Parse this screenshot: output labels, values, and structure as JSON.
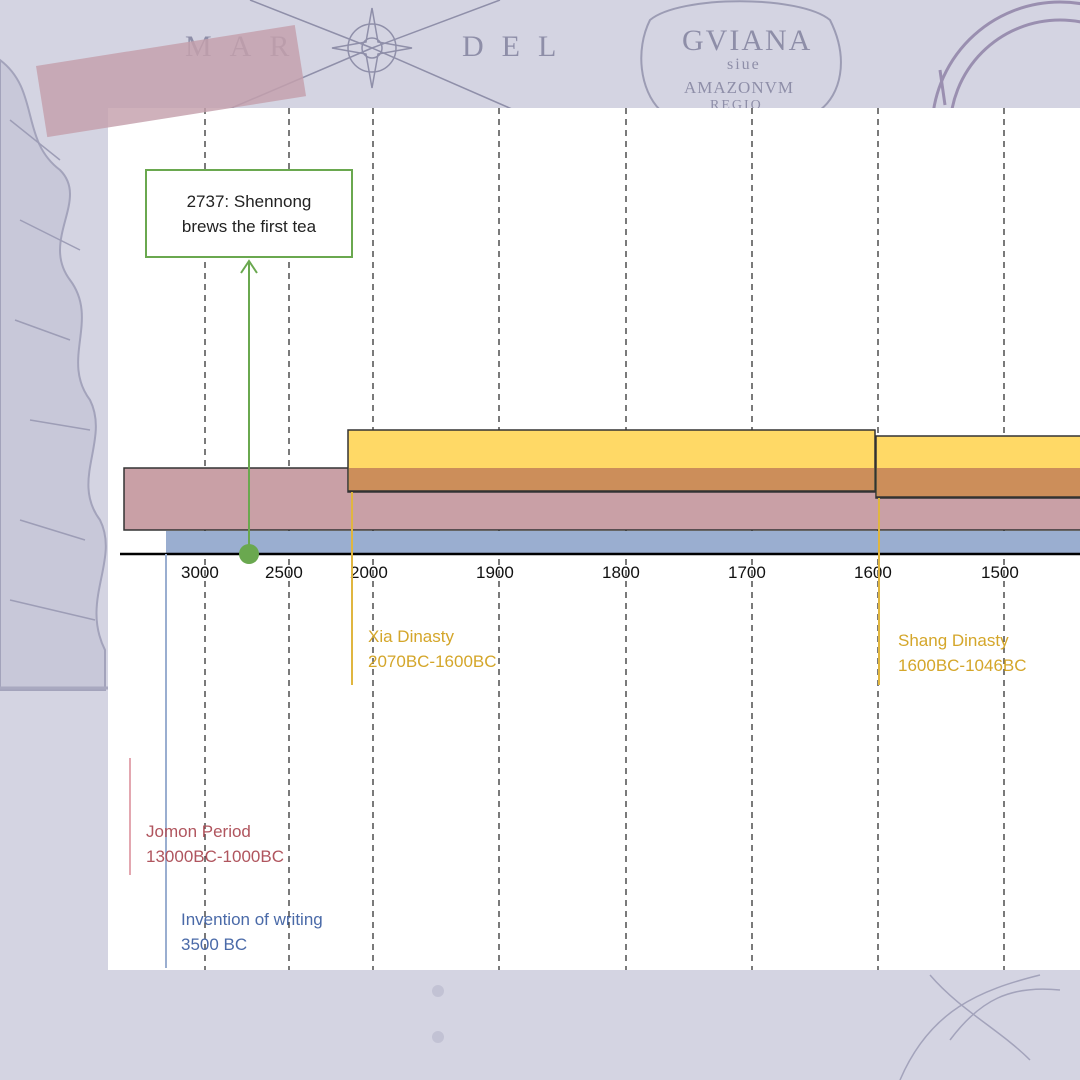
{
  "background": {
    "map_words": [
      "MAR",
      "DEL"
    ],
    "cartouche_title": "GVIANA",
    "cartouche_sub": "siue",
    "cartouche_line": "AMAZONVM",
    "cartouche_extra": "REGIO"
  },
  "colors": {
    "jomon": "#c9a0a6",
    "writing": "#9aaed0",
    "xia": "#ffd966",
    "shang": "#ffd966",
    "overlap": "#cc8e5a",
    "event": "#6aa84f",
    "gridline": "#333333"
  },
  "axis": {
    "ticks": [
      "3000",
      "2500",
      "2000",
      "1900",
      "1800",
      "1700",
      "1600",
      "1500"
    ]
  },
  "event": {
    "line1": "2737: Shennong",
    "line2": "brews the first tea"
  },
  "periods": {
    "xia": {
      "name": "Xia Dinasty",
      "range": "2070BC-1600BC"
    },
    "shang": {
      "name": "Shang Dinasty",
      "range": "1600BC-1046BC"
    },
    "jomon": {
      "name": "Jomon Period",
      "range": "13000BC-1000BC"
    },
    "writing": {
      "name": "Invention of writing",
      "range": "3500 BC"
    }
  }
}
